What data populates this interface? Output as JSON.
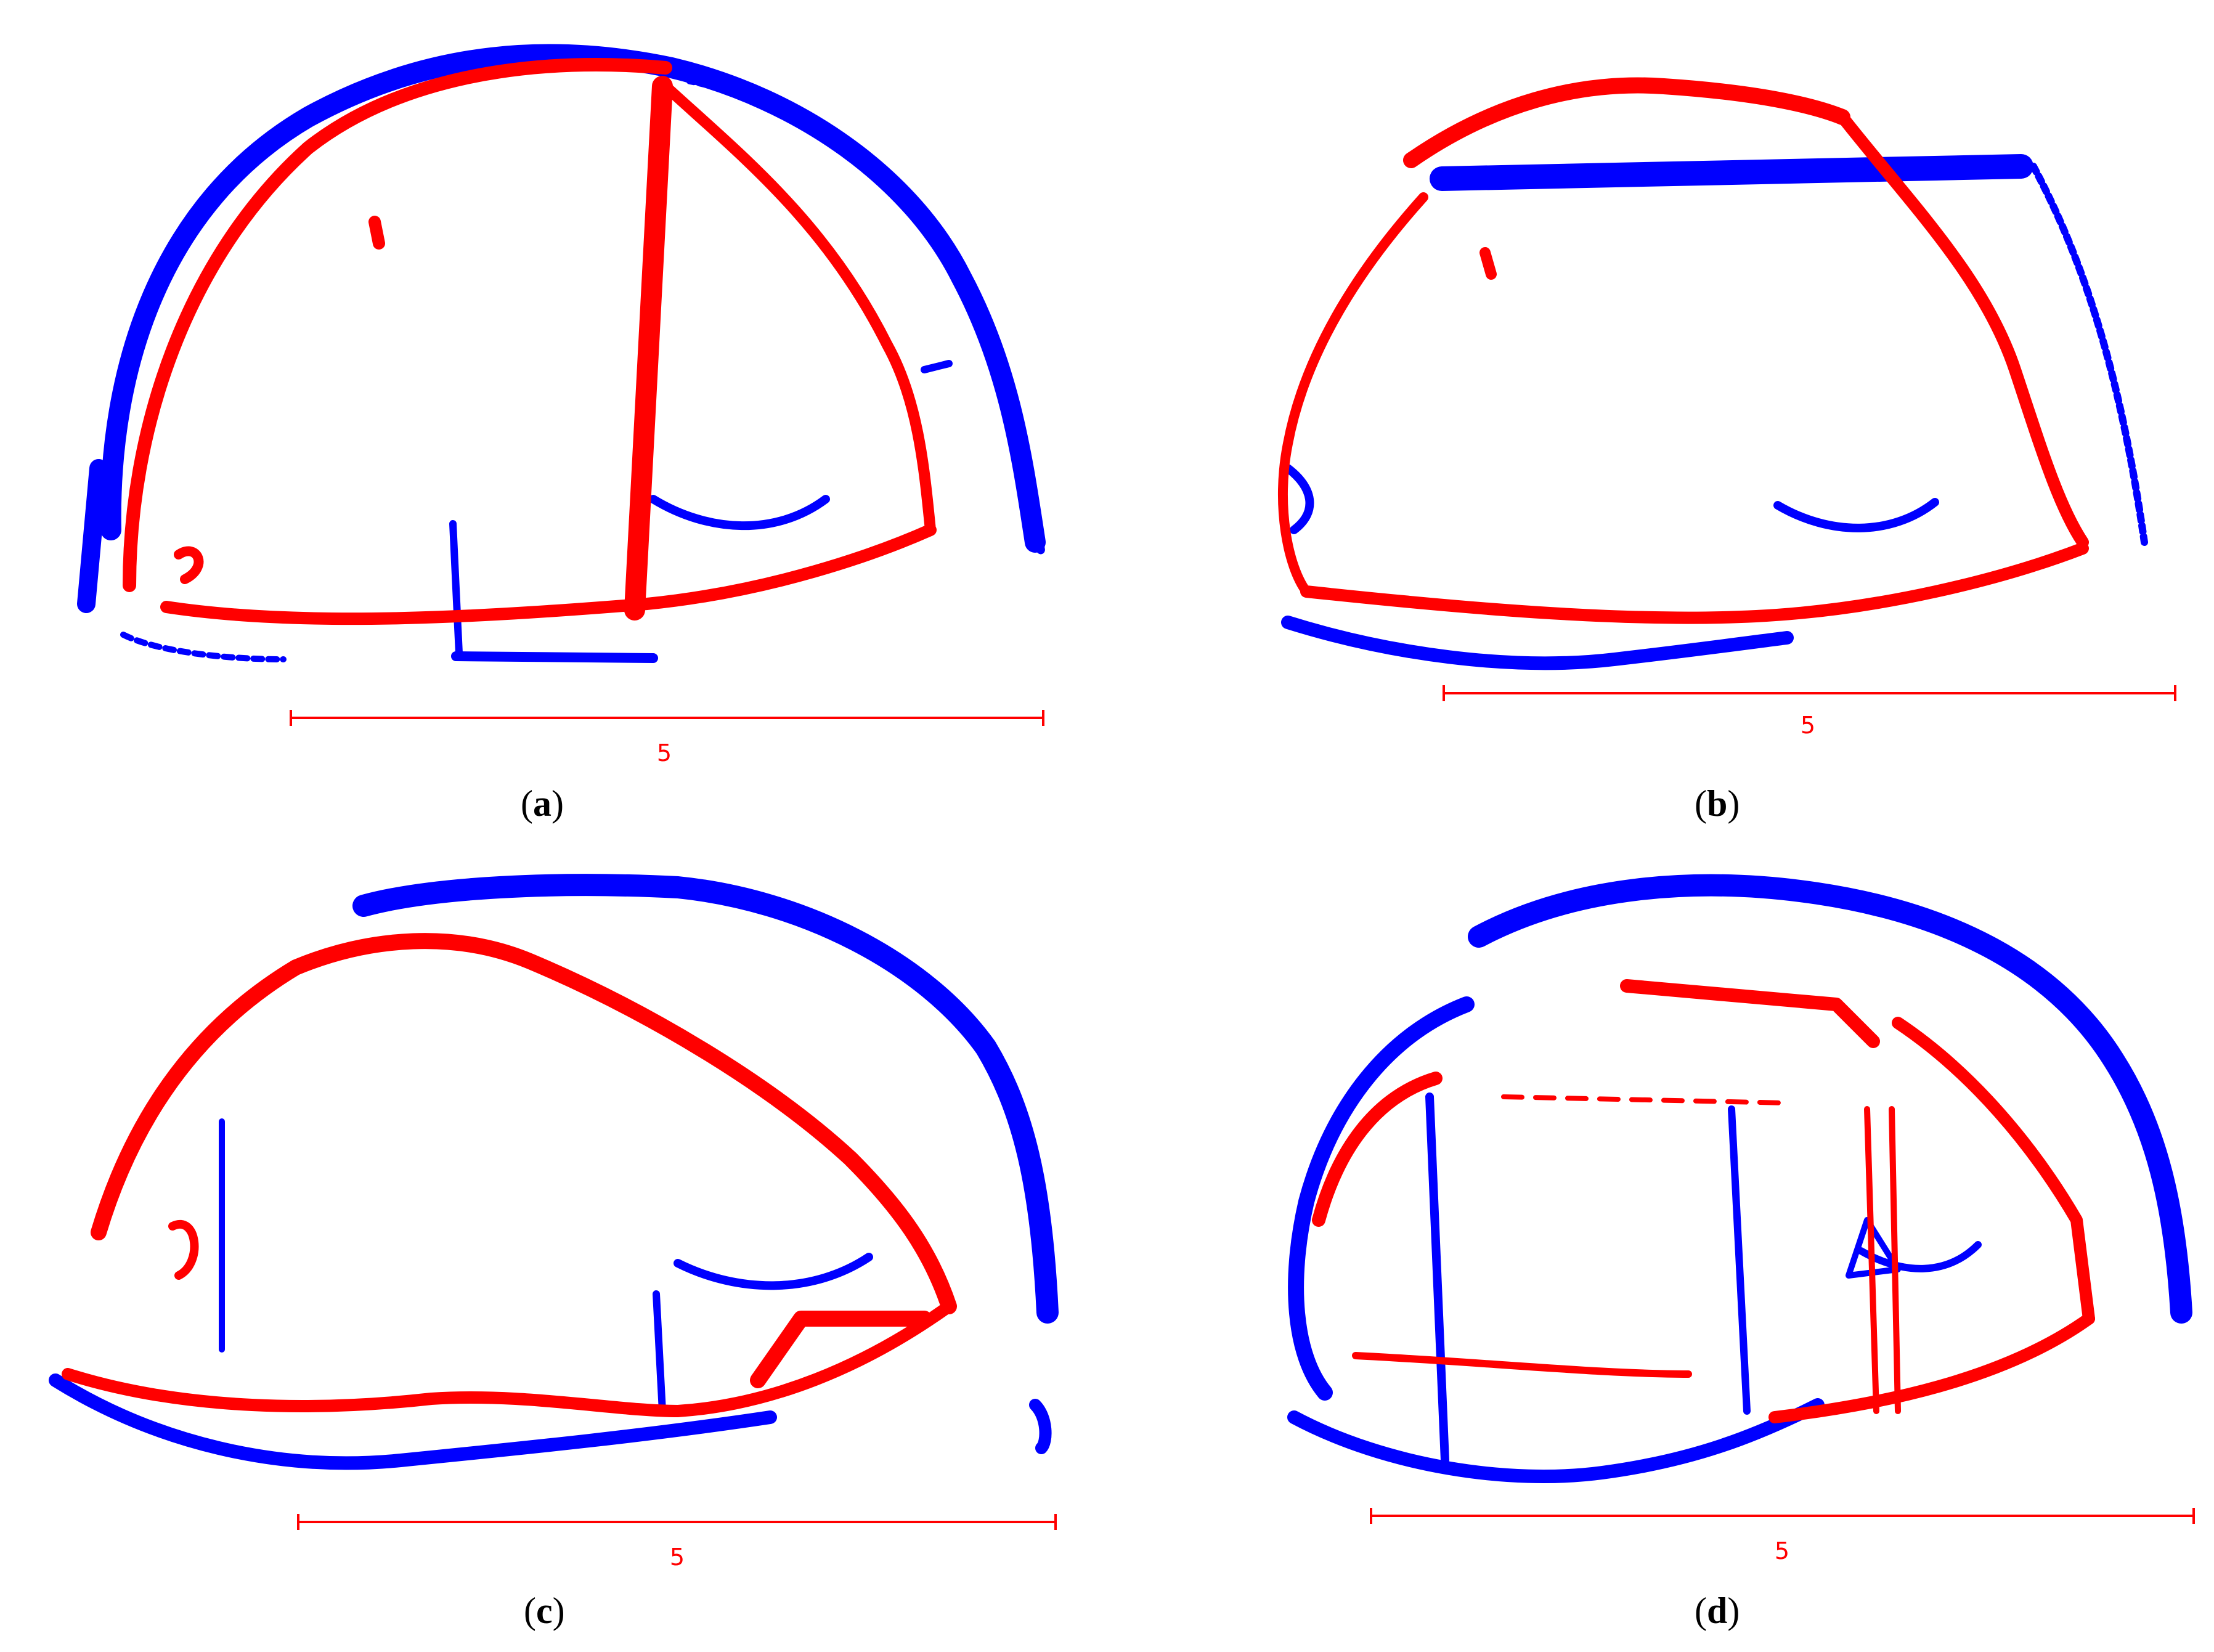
{
  "colors": {
    "scan_a": "#0000ff",
    "scan_b": "#ff0000",
    "scale": "#ff0000"
  },
  "panels": [
    {
      "id": "a",
      "caption_letter": "a",
      "scale_label": "5"
    },
    {
      "id": "b",
      "caption_letter": "b",
      "scale_label": "5"
    },
    {
      "id": "c",
      "caption_letter": "c",
      "scale_label": "5"
    },
    {
      "id": "d",
      "caption_letter": "d",
      "scale_label": "5"
    }
  ]
}
